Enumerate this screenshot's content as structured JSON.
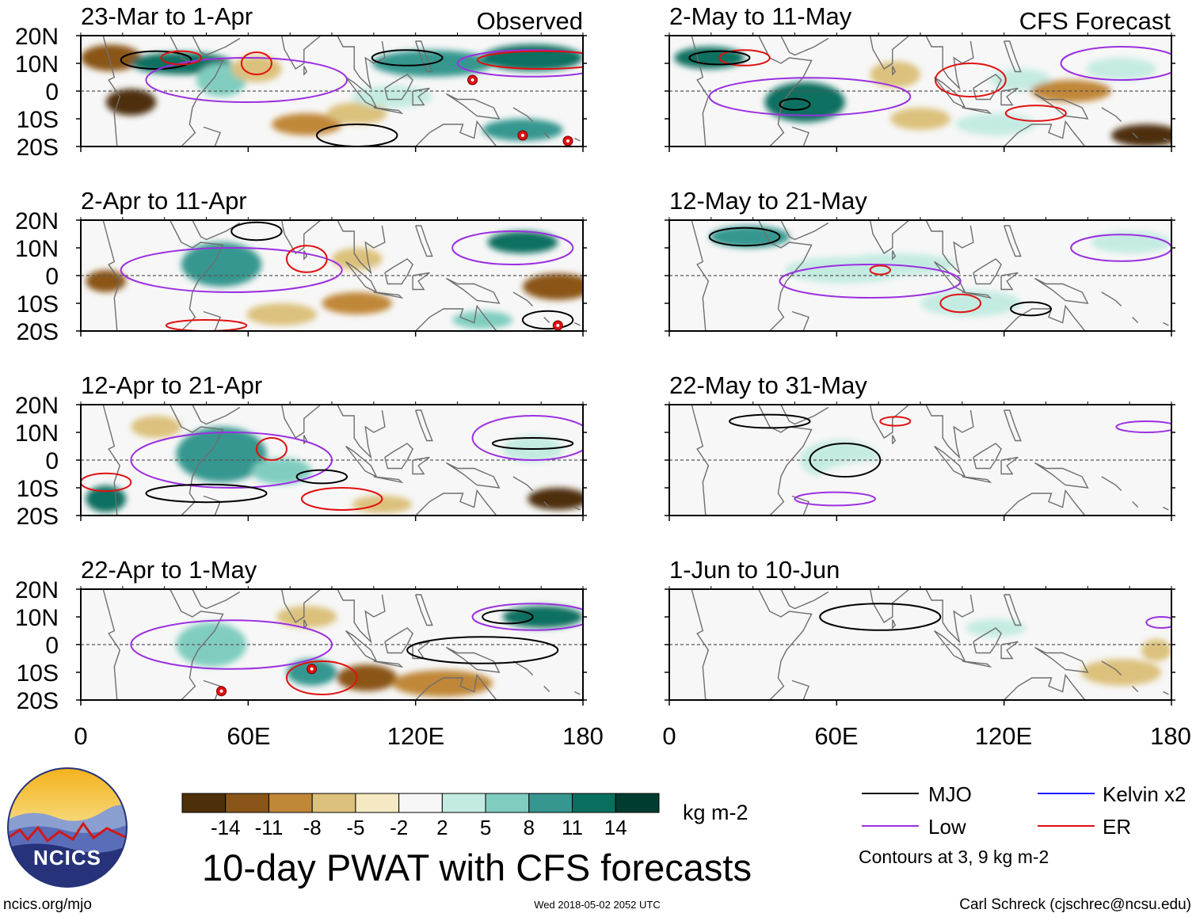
{
  "header": {
    "left_label": "Observed",
    "right_label": "CFS Forecast"
  },
  "axes": {
    "lat_ticks": [
      "20N",
      "10N",
      "0",
      "10S",
      "20S"
    ],
    "lon_ticks": [
      "0",
      "60E",
      "120E",
      "180"
    ]
  },
  "panels": [
    {
      "title": "23-Mar to 1-Apr",
      "col": 0,
      "row": 0,
      "blobs": [
        [
          0.06,
          0.2,
          0.06,
          0.12,
          -11
        ],
        [
          0.1,
          0.6,
          0.05,
          0.12,
          -14
        ],
        [
          0.2,
          0.25,
          0.1,
          0.1,
          14
        ],
        [
          0.28,
          0.4,
          0.05,
          0.15,
          8
        ],
        [
          0.45,
          0.8,
          0.07,
          0.1,
          -8
        ],
        [
          0.55,
          0.7,
          0.06,
          0.1,
          -5
        ],
        [
          0.7,
          0.25,
          0.12,
          0.12,
          11
        ],
        [
          0.9,
          0.2,
          0.1,
          0.12,
          14
        ],
        [
          0.88,
          0.85,
          0.08,
          0.1,
          11
        ],
        [
          0.62,
          0.55,
          0.08,
          0.1,
          5
        ],
        [
          0.35,
          0.3,
          0.05,
          0.12,
          -5
        ]
      ],
      "rings": [
        [
          0.15,
          0.22,
          0.07,
          0.08,
          "#000000"
        ],
        [
          0.65,
          0.2,
          0.07,
          0.07,
          "#000000"
        ],
        [
          0.55,
          0.9,
          0.08,
          0.1,
          "#000000"
        ],
        [
          0.33,
          0.4,
          0.2,
          0.2,
          "#9b30e0"
        ],
        [
          0.9,
          0.25,
          0.15,
          0.12,
          "#9b30e0"
        ],
        [
          0.92,
          0.22,
          0.13,
          0.08,
          "#e01010"
        ],
        [
          0.35,
          0.25,
          0.03,
          0.1,
          "#e01010"
        ],
        [
          0.2,
          0.2,
          0.04,
          0.06,
          "#e01010"
        ]
      ],
      "storms": [
        [
          0.78,
          0.4
        ],
        [
          0.88,
          0.9
        ],
        [
          0.97,
          0.95
        ]
      ]
    },
    {
      "title": "2-May to 11-May",
      "col": 1,
      "row": 0,
      "blobs": [
        [
          0.08,
          0.2,
          0.07,
          0.1,
          14
        ],
        [
          0.27,
          0.6,
          0.08,
          0.18,
          14
        ],
        [
          0.45,
          0.35,
          0.05,
          0.12,
          -5
        ],
        [
          0.5,
          0.75,
          0.06,
          0.1,
          -5
        ],
        [
          0.7,
          0.4,
          0.06,
          0.1,
          5
        ],
        [
          0.8,
          0.5,
          0.08,
          0.1,
          -8
        ],
        [
          0.95,
          0.9,
          0.07,
          0.1,
          -14
        ],
        [
          0.9,
          0.3,
          0.07,
          0.1,
          5
        ],
        [
          0.65,
          0.8,
          0.08,
          0.1,
          5
        ]
      ],
      "rings": [
        [
          0.28,
          0.55,
          0.2,
          0.17,
          "#9b30e0"
        ],
        [
          0.9,
          0.25,
          0.12,
          0.15,
          "#9b30e0"
        ],
        [
          0.6,
          0.4,
          0.07,
          0.15,
          "#e01010"
        ],
        [
          0.15,
          0.2,
          0.05,
          0.07,
          "#e01010"
        ],
        [
          0.73,
          0.7,
          0.06,
          0.07,
          "#e01010"
        ],
        [
          0.1,
          0.2,
          0.06,
          0.06,
          "#000000"
        ],
        [
          0.25,
          0.62,
          0.03,
          0.05,
          "#000000"
        ]
      ],
      "storms": []
    },
    {
      "title": "2-Apr to 11-Apr",
      "col": 0,
      "row": 1,
      "blobs": [
        [
          0.05,
          0.55,
          0.04,
          0.1,
          -11
        ],
        [
          0.28,
          0.4,
          0.08,
          0.2,
          11
        ],
        [
          0.4,
          0.85,
          0.07,
          0.1,
          -5
        ],
        [
          0.55,
          0.75,
          0.07,
          0.1,
          -8
        ],
        [
          0.95,
          0.6,
          0.07,
          0.12,
          -11
        ],
        [
          0.88,
          0.2,
          0.07,
          0.1,
          14
        ],
        [
          0.8,
          0.9,
          0.06,
          0.08,
          8
        ],
        [
          0.55,
          0.35,
          0.05,
          0.1,
          -5
        ]
      ],
      "rings": [
        [
          0.3,
          0.45,
          0.22,
          0.2,
          "#9b30e0"
        ],
        [
          0.86,
          0.25,
          0.12,
          0.15,
          "#9b30e0"
        ],
        [
          0.45,
          0.35,
          0.04,
          0.12,
          "#e01010"
        ],
        [
          0.25,
          0.95,
          0.08,
          0.05,
          "#e01010"
        ],
        [
          0.35,
          0.1,
          0.05,
          0.08,
          "#000000"
        ],
        [
          0.93,
          0.9,
          0.05,
          0.08,
          "#000000"
        ]
      ],
      "storms": [
        [
          0.95,
          0.95
        ]
      ]
    },
    {
      "title": "12-May to 21-May",
      "col": 1,
      "row": 1,
      "blobs": [
        [
          0.16,
          0.15,
          0.08,
          0.1,
          11
        ],
        [
          0.35,
          0.45,
          0.12,
          0.12,
          5
        ],
        [
          0.45,
          0.4,
          0.12,
          0.1,
          5
        ],
        [
          0.6,
          0.75,
          0.1,
          0.12,
          5
        ],
        [
          0.92,
          0.2,
          0.08,
          0.1,
          5
        ],
        [
          0.05,
          0.7,
          0.04,
          0.12,
          2
        ]
      ],
      "rings": [
        [
          0.4,
          0.55,
          0.18,
          0.15,
          "#9b30e0"
        ],
        [
          0.9,
          0.25,
          0.1,
          0.12,
          "#9b30e0"
        ],
        [
          0.58,
          0.75,
          0.04,
          0.08,
          "#e01010"
        ],
        [
          0.42,
          0.45,
          0.02,
          0.04,
          "#e01010"
        ],
        [
          0.15,
          0.15,
          0.07,
          0.08,
          "#000000"
        ],
        [
          0.72,
          0.8,
          0.04,
          0.06,
          "#000000"
        ]
      ],
      "storms": []
    },
    {
      "title": "12-Apr to 21-Apr",
      "col": 0,
      "row": 2,
      "blobs": [
        [
          0.05,
          0.85,
          0.04,
          0.12,
          14
        ],
        [
          0.28,
          0.45,
          0.09,
          0.25,
          11
        ],
        [
          0.4,
          0.6,
          0.06,
          0.12,
          8
        ],
        [
          0.95,
          0.85,
          0.06,
          0.1,
          -14
        ],
        [
          0.9,
          0.4,
          0.06,
          0.12,
          5
        ],
        [
          0.15,
          0.2,
          0.05,
          0.1,
          -5
        ],
        [
          0.6,
          0.9,
          0.06,
          0.08,
          -5
        ]
      ],
      "rings": [
        [
          0.3,
          0.5,
          0.2,
          0.25,
          "#9b30e0"
        ],
        [
          0.9,
          0.3,
          0.12,
          0.2,
          "#9b30e0"
        ],
        [
          0.38,
          0.4,
          0.03,
          0.1,
          "#e01010"
        ],
        [
          0.05,
          0.7,
          0.05,
          0.08,
          "#e01010"
        ],
        [
          0.52,
          0.85,
          0.08,
          0.1,
          "#e01010"
        ],
        [
          0.25,
          0.8,
          0.12,
          0.08,
          "#000000"
        ],
        [
          0.48,
          0.65,
          0.05,
          0.06,
          "#000000"
        ],
        [
          0.9,
          0.35,
          0.08,
          0.05,
          "#000000"
        ]
      ],
      "storms": []
    },
    {
      "title": "22-May to 31-May",
      "col": 1,
      "row": 2,
      "blobs": [
        [
          0.34,
          0.5,
          0.08,
          0.18,
          5
        ],
        [
          0.45,
          0.65,
          0.15,
          0.15,
          2
        ],
        [
          0.7,
          0.8,
          0.15,
          0.1,
          2
        ],
        [
          0.95,
          0.4,
          0.05,
          0.12,
          2
        ],
        [
          0.05,
          0.75,
          0.04,
          0.1,
          2
        ]
      ],
      "rings": [
        [
          0.35,
          0.5,
          0.07,
          0.15,
          "#000000"
        ],
        [
          0.2,
          0.15,
          0.08,
          0.06,
          "#000000"
        ],
        [
          0.33,
          0.85,
          0.08,
          0.06,
          "#9b30e0"
        ],
        [
          0.95,
          0.2,
          0.06,
          0.05,
          "#9b30e0"
        ],
        [
          0.45,
          0.15,
          0.03,
          0.04,
          "#e01010"
        ]
      ],
      "storms": []
    },
    {
      "title": "22-Apr to 1-May",
      "col": 0,
      "row": 3,
      "blobs": [
        [
          0.26,
          0.5,
          0.07,
          0.2,
          8
        ],
        [
          0.57,
          0.8,
          0.06,
          0.12,
          -11
        ],
        [
          0.72,
          0.85,
          0.1,
          0.12,
          -8
        ],
        [
          0.46,
          0.75,
          0.05,
          0.12,
          11
        ],
        [
          0.92,
          0.25,
          0.08,
          0.1,
          14
        ],
        [
          0.45,
          0.25,
          0.06,
          0.1,
          -5
        ]
      ],
      "rings": [
        [
          0.3,
          0.5,
          0.2,
          0.22,
          "#9b30e0"
        ],
        [
          0.9,
          0.25,
          0.12,
          0.12,
          "#9b30e0"
        ],
        [
          0.48,
          0.8,
          0.07,
          0.15,
          "#e01010"
        ],
        [
          0.8,
          0.55,
          0.15,
          0.12,
          "#000000"
        ],
        [
          0.85,
          0.25,
          0.05,
          0.06,
          "#000000"
        ]
      ],
      "storms": [
        [
          0.46,
          0.72
        ],
        [
          0.28,
          0.92
        ]
      ]
    },
    {
      "title": "1-Jun to 10-Jun",
      "col": 1,
      "row": 3,
      "blobs": [
        [
          0.4,
          0.3,
          0.1,
          0.12,
          2
        ],
        [
          0.6,
          0.7,
          0.12,
          0.12,
          2
        ],
        [
          0.65,
          0.35,
          0.06,
          0.08,
          5
        ],
        [
          0.9,
          0.75,
          0.08,
          0.12,
          -5
        ],
        [
          0.97,
          0.55,
          0.03,
          0.1,
          -5
        ],
        [
          0.25,
          0.85,
          0.06,
          0.1,
          2
        ]
      ],
      "rings": [
        [
          0.42,
          0.25,
          0.12,
          0.12,
          "#000000"
        ],
        [
          0.98,
          0.3,
          0.03,
          0.05,
          "#9b30e0"
        ]
      ],
      "storms": []
    }
  ],
  "colorbar": {
    "ticks": [
      "-14",
      "-11",
      "-8",
      "-5",
      "-2",
      "2",
      "5",
      "8",
      "11",
      "14"
    ],
    "colors": [
      "#4d2f0a",
      "#8a5518",
      "#c08737",
      "#dcc17c",
      "#f5e9c3",
      "#f7f7f7",
      "#c4ebe2",
      "#80cdc0",
      "#35978f",
      "#097060",
      "#013c30"
    ],
    "units": "kg m-2"
  },
  "title": "10-day PWAT with CFS forecasts",
  "legend": {
    "items": [
      {
        "label": "MJO",
        "color": "#000000"
      },
      {
        "label": "Kelvin x2",
        "color": "#1a1aff"
      },
      {
        "label": "Low",
        "color": "#9b30e0"
      },
      {
        "label": "ER",
        "color": "#e01010"
      }
    ],
    "note": "Contours at 3, 9 kg m-2"
  },
  "logo": {
    "text": "NCICS"
  },
  "footer": {
    "url": "ncics.org/mjo",
    "timestamp": "Wed 2018-05-02 2052 UTC",
    "credit": "Carl Schreck (cjschrec@ncsu.edu)"
  }
}
